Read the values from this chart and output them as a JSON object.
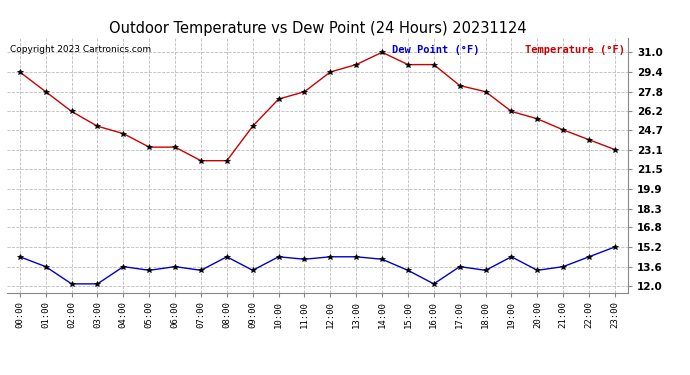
{
  "title": "Outdoor Temperature vs Dew Point (24 Hours) 20231124",
  "copyright": "Copyright 2023 Cartronics.com",
  "x_labels": [
    "00:00",
    "01:00",
    "02:00",
    "03:00",
    "04:00",
    "05:00",
    "06:00",
    "07:00",
    "08:00",
    "09:00",
    "10:00",
    "11:00",
    "12:00",
    "13:00",
    "14:00",
    "15:00",
    "16:00",
    "17:00",
    "18:00",
    "19:00",
    "20:00",
    "21:00",
    "22:00",
    "23:00"
  ],
  "temperature": [
    29.4,
    27.8,
    26.2,
    25.0,
    24.4,
    23.3,
    23.3,
    22.2,
    22.2,
    25.0,
    27.2,
    27.8,
    29.4,
    30.0,
    31.0,
    30.0,
    30.0,
    28.3,
    27.8,
    26.2,
    25.6,
    24.7,
    23.9,
    23.1
  ],
  "dew_point": [
    14.4,
    13.6,
    12.2,
    12.2,
    13.6,
    13.3,
    13.6,
    13.3,
    14.4,
    13.3,
    14.4,
    14.2,
    14.4,
    14.4,
    14.2,
    13.3,
    12.2,
    13.6,
    13.3,
    14.4,
    13.3,
    13.6,
    14.4,
    15.2
  ],
  "temp_color": "#cc0000",
  "dew_color": "#0000cc",
  "legend_dew_label": "Dew Point (°F)",
  "legend_temp_label": "Temperature (°F)",
  "y_ticks": [
    12.0,
    13.6,
    15.2,
    16.8,
    18.3,
    19.9,
    21.5,
    23.1,
    24.7,
    26.2,
    27.8,
    29.4,
    31.0
  ],
  "ylim": [
    11.5,
    32.2
  ],
  "background_color": "#ffffff",
  "grid_color": "#bbbbbb"
}
